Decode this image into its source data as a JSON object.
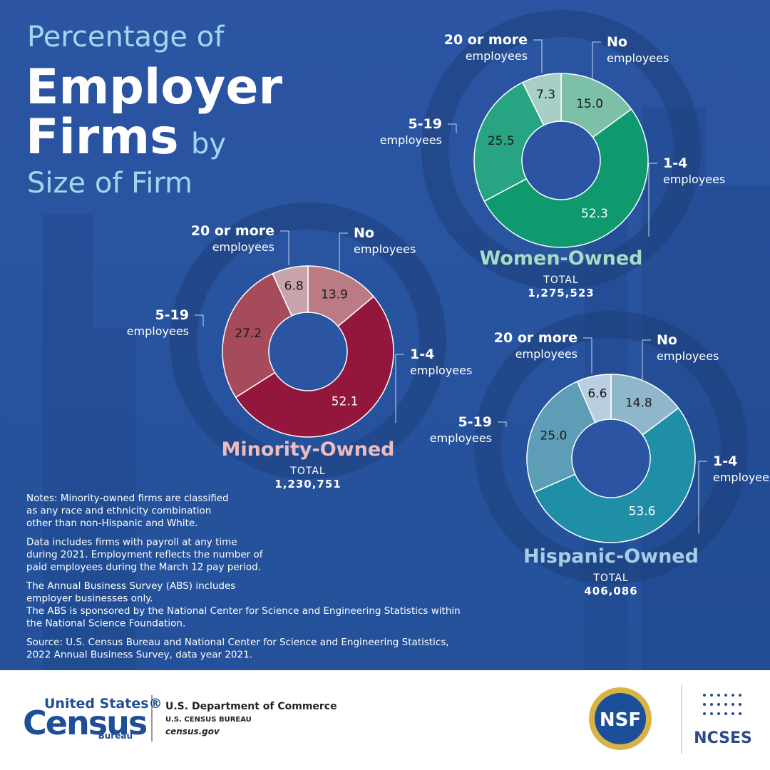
{
  "header": {
    "line1": "Percentage of",
    "line2": "Employer",
    "line3": "Firms",
    "line3_suffix": "by",
    "line4": "Size of Firm"
  },
  "chart_data": [
    {
      "type": "donut",
      "title": "Women-Owned",
      "total_label": "TOTAL",
      "total": "1,275,523",
      "categories": [
        "No",
        "1-4",
        "5-19",
        "20 or more"
      ],
      "category_unit": "employees",
      "values": [
        15.0,
        52.3,
        25.5,
        7.3
      ],
      "value_labels": [
        "15.0",
        "52.3",
        "25.5",
        "7.3"
      ],
      "colors": [
        "#7cc0a8",
        "#0e9a6e",
        "#27a481",
        "#a8cfc5"
      ],
      "title_color": "#a8dcc4"
    },
    {
      "type": "donut",
      "title": "Minority-Owned",
      "total_label": "TOTAL",
      "total": "1,230,751",
      "categories": [
        "No",
        "1-4",
        "5-19",
        "20 or more"
      ],
      "category_unit": "employees",
      "values": [
        13.9,
        52.1,
        27.2,
        6.8
      ],
      "value_labels": [
        "13.9",
        "52.1",
        "27.2",
        "6.8"
      ],
      "colors": [
        "#bb7b84",
        "#93163c",
        "#a54b5c",
        "#caa4ac"
      ],
      "title_color": "#ebbcc0"
    },
    {
      "type": "donut",
      "title": "Hispanic-Owned",
      "total_label": "TOTAL",
      "total": "406,086",
      "categories": [
        "No",
        "1-4",
        "5-19",
        "20 or more"
      ],
      "category_unit": "employees",
      "values": [
        14.8,
        53.6,
        25.0,
        6.6
      ],
      "value_labels": [
        "14.8",
        "53.6",
        "25.0",
        "6.6"
      ],
      "colors": [
        "#8fb6cb",
        "#1f8fa8",
        "#5d9db6",
        "#b9cee1"
      ],
      "title_color": "#a9cde6"
    }
  ],
  "notes": [
    [
      "Notes: Minority-owned firms are classified",
      "as any race and ethnicity combination",
      "other than non-Hispanic and White."
    ],
    [
      "Data includes firms with payroll at any time",
      "during 2021. Employment reflects the number of",
      "paid employees during the March 12 pay period."
    ],
    [
      "The Annual Business Survey (ABS) includes",
      "employer businesses only.",
      "The ABS is sponsored by the National Center for Science and Engineering Statistics within",
      "the National Science Foundation."
    ],
    [
      "Source: U.S. Census Bureau and National Center for Science and Engineering Statistics,",
      "2022 Annual Business Survey, data year 2021."
    ]
  ],
  "footer": {
    "logo_top": "United States®",
    "logo_main": "Census",
    "logo_sub": "Bureau",
    "dept": "U.S. Department of Commerce",
    "bureau": "U.S. CENSUS BUREAU",
    "site": "census.gov",
    "nsf": "NSF",
    "ncses": "NCSES"
  }
}
